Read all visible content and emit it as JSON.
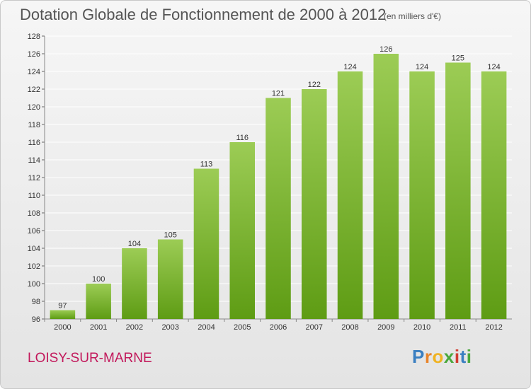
{
  "chart_data": {
    "type": "bar",
    "title": "Dotation Globale de Fonctionnement de 2000 à 2012",
    "subtitle": "(en milliers d'€)",
    "categories": [
      "2000",
      "2001",
      "2002",
      "2003",
      "2004",
      "2005",
      "2006",
      "2007",
      "2008",
      "2009",
      "2010",
      "2011",
      "2012"
    ],
    "values": [
      97,
      100,
      104,
      105,
      113,
      116,
      121,
      122,
      124,
      126,
      124,
      125,
      124
    ],
    "ylim": [
      96,
      128
    ],
    "ytick_step": 2,
    "xlabel": "",
    "ylabel": "",
    "grid": true,
    "colors": {
      "bar_top": "#9ccc55",
      "bar_bottom": "#5e9c14",
      "grid": "#ffffff"
    }
  },
  "location": "LOISY-SUR-MARNE",
  "brand": {
    "name": "Proxiti",
    "letters": [
      "P",
      "r",
      "o",
      "x",
      "i",
      "t",
      "i"
    ],
    "letter_colors": [
      "#3a7fc1",
      "#e8842a",
      "#f0b322",
      "#4aa83c",
      "#d23c2f",
      "#3a7fc1",
      "#4aa83c"
    ]
  }
}
